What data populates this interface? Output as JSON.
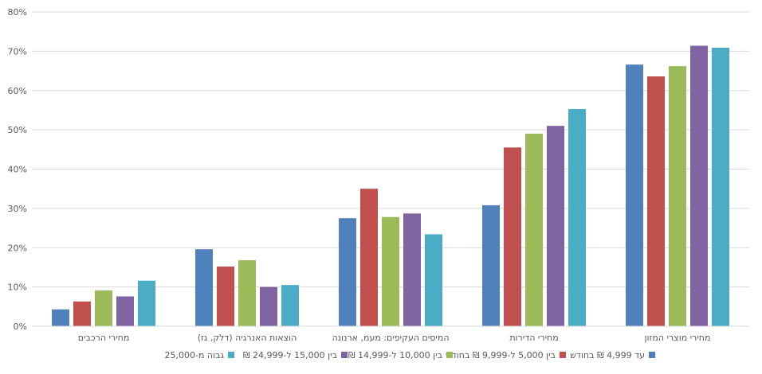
{
  "chart_data": {
    "type": "bar",
    "categories": [
      "מחירי הרכבים",
      "הוצאות האנרגיה (דלק, גז)",
      "המיסים העקיפים: מעמ, ארנונה",
      "מחירי הדירות",
      "מחירי מוצרי המזון"
    ],
    "series": [
      {
        "name": "עד 4,999 ₪ בחודש",
        "color": "#4F81BD",
        "values": [
          4.3,
          19.6,
          27.5,
          30.8,
          66.6
        ]
      },
      {
        "name": "בין 5,000 ל-9,999 ₪ בחודש",
        "color": "#C0504D",
        "values": [
          6.3,
          15.2,
          35.0,
          45.5,
          63.6
        ]
      },
      {
        "name": "בין 10,000 ל-14,999 ₪",
        "color": "#9BBB59",
        "values": [
          9.1,
          16.8,
          27.8,
          49.0,
          66.2
        ]
      },
      {
        "name": "בין 15,000 ל-24,999 ₪",
        "color": "#8064A2",
        "values": [
          7.6,
          10.0,
          28.7,
          51.0,
          71.4
        ]
      },
      {
        "name": "גבוה מ-25,000",
        "color": "#4BACC6",
        "values": [
          11.6,
          10.5,
          23.4,
          55.3,
          70.9
        ]
      }
    ],
    "y_ticks": [
      "0%",
      "10%",
      "20%",
      "30%",
      "40%",
      "50%",
      "60%",
      "70%",
      "80%"
    ],
    "ylim": [
      0,
      80
    ],
    "grid": true,
    "legend_position": "bottom"
  }
}
